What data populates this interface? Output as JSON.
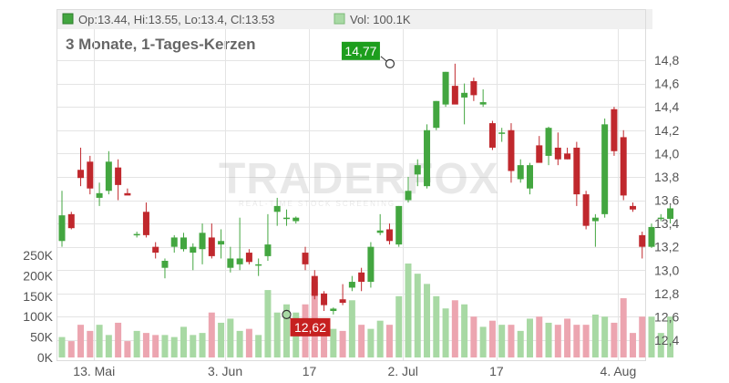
{
  "header": {
    "ohlc_text": "Op:13.44, Hi:13.55, Lo:13.4, Cl:13.53",
    "vol_text": "Vol: 100.1K",
    "subtitle": "3 Monate, 1-Tages-Kerzen"
  },
  "watermark": {
    "text": "TRADERFOX",
    "tagline": "REAL-TIME STOCK SCREENING"
  },
  "colors": {
    "up": "#43a640",
    "down": "#c0282d",
    "vol_up": "#a8d9a4",
    "vol_down": "#eca5b0",
    "grid": "#e4e4e4",
    "panel": "#f0f0f0",
    "flag_high": "#1d9e1d",
    "flag_low": "#c62020"
  },
  "chart_data": {
    "type": "candlestick",
    "title": "",
    "subtitle": "3 Monate, 1-Tages-Kerzen",
    "x_tick_labels": [
      {
        "label": "13. Mai",
        "index": 1
      },
      {
        "label": "3. Jun",
        "index": 15
      },
      {
        "label": "17",
        "index": 24
      },
      {
        "label": "2. Jul",
        "index": 34
      },
      {
        "label": "17",
        "index": 44
      },
      {
        "label": "4. Aug",
        "index": 57
      }
    ],
    "price_axis": {
      "min": 12.3,
      "max": 14.9,
      "ticks": [
        "12,4",
        "12,6",
        "12,8",
        "13,0",
        "13,2",
        "13,4",
        "13,6",
        "13,8",
        "14,0",
        "14,2",
        "14,4",
        "14,6",
        "14,8"
      ]
    },
    "volume_axis": {
      "min": 0,
      "max": 275000,
      "ticks": [
        "0K",
        "50K",
        "100K",
        "150K",
        "200K",
        "250K"
      ]
    },
    "high_marker": {
      "label": "14,77",
      "value": 14.77,
      "index": 35
    },
    "low_marker": {
      "label": "12,62",
      "value": 12.62,
      "index": 24
    },
    "candles": [
      {
        "o": 13.25,
        "h": 13.68,
        "l": 13.2,
        "c": 13.47,
        "v": 50000
      },
      {
        "o": 13.48,
        "h": 13.5,
        "l": 13.35,
        "c": 13.36,
        "v": 40000
      },
      {
        "o": 13.86,
        "h": 14.05,
        "l": 13.72,
        "c": 13.79,
        "v": 80000
      },
      {
        "o": 13.93,
        "h": 13.98,
        "l": 13.65,
        "c": 13.7,
        "v": 65000
      },
      {
        "o": 13.62,
        "h": 13.75,
        "l": 13.55,
        "c": 13.66,
        "v": 80000
      },
      {
        "o": 13.68,
        "h": 14.02,
        "l": 13.65,
        "c": 13.93,
        "v": 55000
      },
      {
        "o": 13.88,
        "h": 13.95,
        "l": 13.6,
        "c": 13.73,
        "v": 85000
      },
      {
        "o": 13.66,
        "h": 13.7,
        "l": 13.65,
        "c": 13.64,
        "v": 40000
      },
      {
        "o": 13.3,
        "h": 13.33,
        "l": 13.28,
        "c": 13.31,
        "v": 65000
      },
      {
        "o": 13.5,
        "h": 13.58,
        "l": 13.28,
        "c": 13.3,
        "v": 60000
      },
      {
        "o": 13.2,
        "h": 13.24,
        "l": 13.1,
        "c": 13.15,
        "v": 55000
      },
      {
        "o": 13.02,
        "h": 13.1,
        "l": 12.93,
        "c": 13.08,
        "v": 55000
      },
      {
        "o": 13.2,
        "h": 13.3,
        "l": 13.15,
        "c": 13.28,
        "v": 50000
      },
      {
        "o": 13.18,
        "h": 13.32,
        "l": 13.16,
        "c": 13.28,
        "v": 75000
      },
      {
        "o": 13.15,
        "h": 13.23,
        "l": 13.0,
        "c": 13.2,
        "v": 55000
      },
      {
        "o": 13.18,
        "h": 13.4,
        "l": 13.05,
        "c": 13.32,
        "v": 60000
      },
      {
        "o": 13.28,
        "h": 13.4,
        "l": 13.1,
        "c": 13.12,
        "v": 110000
      },
      {
        "o": 13.22,
        "h": 13.35,
        "l": 13.1,
        "c": 13.25,
        "v": 85000
      },
      {
        "o": 13.02,
        "h": 13.2,
        "l": 12.98,
        "c": 13.1,
        "v": 95000
      },
      {
        "o": 13.05,
        "h": 13.45,
        "l": 13.0,
        "c": 13.1,
        "v": 65000
      },
      {
        "o": 13.15,
        "h": 13.18,
        "l": 13.05,
        "c": 13.07,
        "v": 70000
      },
      {
        "o": 13.05,
        "h": 13.1,
        "l": 12.95,
        "c": 13.05,
        "v": 55000
      },
      {
        "o": 13.12,
        "h": 13.48,
        "l": 13.08,
        "c": 13.22,
        "v": 165000
      },
      {
        "o": 13.5,
        "h": 13.62,
        "l": 13.38,
        "c": 13.55,
        "v": 110000
      },
      {
        "o": 13.45,
        "h": 13.52,
        "l": 13.38,
        "c": 13.45,
        "v": 130000
      }
    ],
    "candles_b": [
      {
        "o": 13.42,
        "h": 13.46,
        "l": 13.4,
        "c": 13.45,
        "v": 110000
      },
      {
        "o": 13.15,
        "h": 13.2,
        "l": 13.0,
        "c": 13.05,
        "v": 130000
      },
      {
        "o": 12.95,
        "h": 13.0,
        "l": 12.75,
        "c": 12.78,
        "v": 185000
      },
      {
        "o": 12.8,
        "h": 12.82,
        "l": 12.65,
        "c": 12.7,
        "v": 85000
      },
      {
        "o": 12.65,
        "h": 12.68,
        "l": 12.62,
        "c": 12.67,
        "v": 70000
      },
      {
        "o": 12.75,
        "h": 12.88,
        "l": 12.7,
        "c": 12.72,
        "v": 65000
      },
      {
        "o": 12.85,
        "h": 12.95,
        "l": 12.82,
        "c": 12.9,
        "v": 140000
      },
      {
        "o": 12.98,
        "h": 13.02,
        "l": 12.82,
        "c": 12.9,
        "v": 80000
      },
      {
        "o": 12.9,
        "h": 13.24,
        "l": 12.85,
        "c": 13.2,
        "v": 70000
      },
      {
        "o": 13.32,
        "h": 13.48,
        "l": 13.3,
        "c": 13.34,
        "v": 90000
      },
      {
        "o": 13.35,
        "h": 13.4,
        "l": 13.22,
        "c": 13.25,
        "v": 80000
      },
      {
        "o": 13.22,
        "h": 13.55,
        "l": 13.2,
        "c": 13.55,
        "v": 150000
      },
      {
        "o": 13.6,
        "h": 13.8,
        "l": 13.58,
        "c": 13.68,
        "v": 230000
      },
      {
        "o": 13.82,
        "h": 13.95,
        "l": 13.72,
        "c": 13.9,
        "v": 205000
      },
      {
        "o": 13.72,
        "h": 14.25,
        "l": 13.7,
        "c": 14.2,
        "v": 180000
      },
      {
        "o": 14.22,
        "h": 14.45,
        "l": 14.2,
        "c": 14.45,
        "v": 150000
      },
      {
        "o": 14.42,
        "h": 14.7,
        "l": 14.4,
        "c": 14.7,
        "v": 120000
      },
      {
        "o": 14.58,
        "h": 14.77,
        "l": 14.5,
        "c": 14.42,
        "v": 140000
      },
      {
        "o": 14.48,
        "h": 14.6,
        "l": 14.25,
        "c": 14.52,
        "v": 130000
      },
      {
        "o": 14.62,
        "h": 14.65,
        "l": 14.45,
        "c": 14.5,
        "v": 100000
      },
      {
        "o": 14.42,
        "h": 14.55,
        "l": 14.4,
        "c": 14.44,
        "v": 75000
      },
      {
        "o": 14.26,
        "h": 14.28,
        "l": 14.03,
        "c": 14.05,
        "v": 90000
      },
      {
        "o": 14.18,
        "h": 14.22,
        "l": 14.1,
        "c": 14.18,
        "v": 80000
      },
      {
        "o": 14.2,
        "h": 14.26,
        "l": 13.75,
        "c": 13.85,
        "v": 80000
      },
      {
        "o": 13.78,
        "h": 13.95,
        "l": 13.75,
        "c": 13.9,
        "v": 65000
      },
      {
        "o": 13.7,
        "h": 13.92,
        "l": 13.65,
        "c": 13.9,
        "v": 95000
      },
      {
        "o": 14.07,
        "h": 14.15,
        "l": 13.95,
        "c": 13.92,
        "v": 100000
      },
      {
        "o": 13.98,
        "h": 14.23,
        "l": 13.9,
        "c": 14.22,
        "v": 85000
      },
      {
        "o": 14.05,
        "h": 14.18,
        "l": 13.9,
        "c": 13.95,
        "v": 80000
      },
      {
        "o": 14.0,
        "h": 14.05,
        "l": 13.95,
        "c": 13.95,
        "v": 95000
      },
      {
        "o": 14.05,
        "h": 14.1,
        "l": 13.55,
        "c": 13.65,
        "v": 80000
      }
    ],
    "candles_c": [
      {
        "o": 13.65,
        "h": 13.68,
        "l": 13.35,
        "c": 13.38,
        "v": 80000
      },
      {
        "o": 13.42,
        "h": 13.48,
        "l": 13.2,
        "c": 13.45,
        "v": 105000
      },
      {
        "o": 13.48,
        "h": 14.3,
        "l": 13.45,
        "c": 14.25,
        "v": 100000
      },
      {
        "o": 14.38,
        "h": 14.4,
        "l": 13.98,
        "c": 14.02,
        "v": 85000
      },
      {
        "o": 14.14,
        "h": 14.2,
        "l": 13.6,
        "c": 13.64,
        "v": 145000
      },
      {
        "o": 13.55,
        "h": 13.58,
        "l": 13.5,
        "c": 13.52,
        "v": 60000
      },
      {
        "o": 13.3,
        "h": 13.33,
        "l": 13.1,
        "c": 13.2,
        "v": 100000
      },
      {
        "o": 13.2,
        "h": 13.4,
        "l": 13.19,
        "c": 13.37,
        "v": 100000
      },
      {
        "o": 13.45,
        "h": 13.48,
        "l": 13.42,
        "c": 13.45,
        "v": 60000
      },
      {
        "o": 13.44,
        "h": 13.55,
        "l": 13.4,
        "c": 13.53,
        "v": 100100
      }
    ]
  }
}
